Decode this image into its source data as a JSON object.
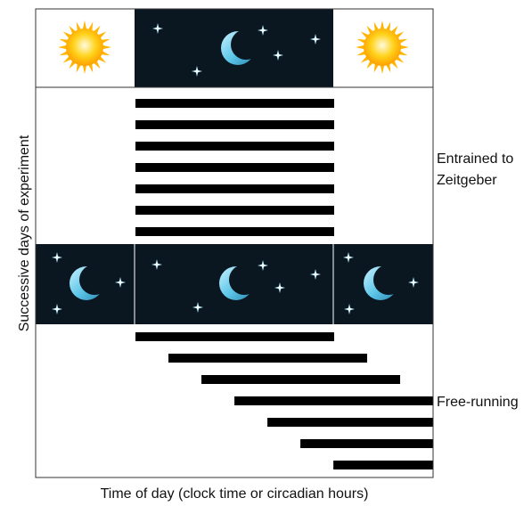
{
  "labels": {
    "entrained_line1": "Entrained to",
    "entrained_line2": "Zeitgeber",
    "free_running": "Free-running",
    "y_axis": "Successive days of experiment",
    "x_axis": "Time of day (clock time or circadian hours)"
  },
  "colors": {
    "night": "#0b1720",
    "bar": "#000000",
    "frame": "#333333",
    "sun_core": "#ffd21a",
    "sun_rays": "#ffb400",
    "moon": "#5cc6e8",
    "star": "#bfeeff"
  },
  "schedule": {
    "top_band": [
      "day",
      "night",
      "day"
    ],
    "middle_band": [
      "night",
      "night",
      "night"
    ],
    "icons": {
      "day": "sun-icon",
      "night": "moon-icon",
      "stars": "star-icon"
    }
  },
  "activity": {
    "entrained_days": 7,
    "free_running_days": 7,
    "free_running_shift_fraction": 0.083
  }
}
